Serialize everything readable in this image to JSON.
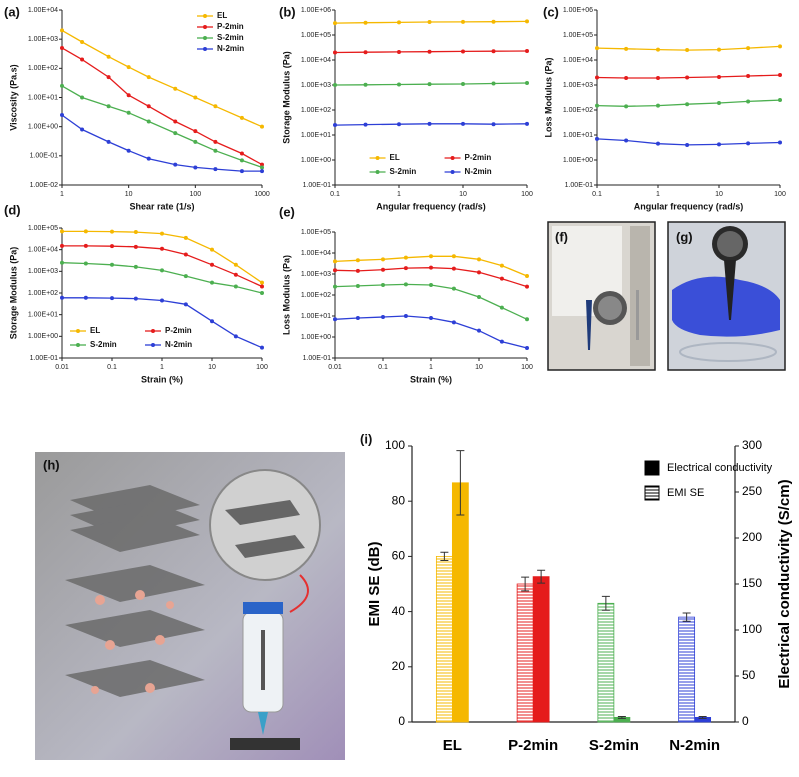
{
  "chart_data": [
    {
      "type": "line",
      "label": "(a)",
      "xlabel": "Shear rate (1/s)",
      "ylabel": "Viscosity (Pa.s)",
      "xscale": "log",
      "yscale": "log",
      "x": [
        1,
        2,
        5,
        10,
        20,
        50,
        100,
        200,
        500,
        1000
      ],
      "xlim": [
        1,
        1000
      ],
      "xticks": [
        1,
        10,
        100,
        1000
      ],
      "ylim": [
        0.01,
        10000
      ],
      "yticks": [
        {
          "value": 0.01,
          "label": "1.00E-02"
        },
        {
          "value": 0.1,
          "label": "1.00E-01"
        },
        {
          "value": 1,
          "label": "1.00E+00"
        },
        {
          "value": 10,
          "label": "1.00E+01"
        },
        {
          "value": 100,
          "label": "1.00E+02"
        },
        {
          "value": 1000,
          "label": "1.00E+03"
        },
        {
          "value": 10000,
          "label": "1.00E+04"
        }
      ],
      "legend": "upper right",
      "series": [
        {
          "name": "EL",
          "color": "#f5b800",
          "values": [
            2000,
            800,
            250,
            110,
            50,
            20,
            10,
            5,
            2,
            1
          ]
        },
        {
          "name": "P-2min",
          "color": "#e51c1c",
          "values": [
            500,
            200,
            50,
            12,
            5,
            1.5,
            0.7,
            0.3,
            0.12,
            0.05
          ]
        },
        {
          "name": "S-2min",
          "color": "#4caf50",
          "values": [
            25,
            10,
            5,
            3,
            1.5,
            0.6,
            0.3,
            0.15,
            0.07,
            0.04
          ]
        },
        {
          "name": "N-2min",
          "color": "#2d3fd6",
          "values": [
            2.5,
            0.8,
            0.3,
            0.15,
            0.08,
            0.05,
            0.04,
            0.035,
            0.03,
            0.03
          ]
        }
      ]
    },
    {
      "type": "line",
      "label": "(b)",
      "xlabel": "Angular frequency (rad/s)",
      "ylabel": "Storage Modulus (Pa)",
      "xscale": "log",
      "yscale": "log",
      "x": [
        0.1,
        0.3,
        1,
        3,
        10,
        30,
        100
      ],
      "xlim": [
        0.1,
        100
      ],
      "xticks": [
        0.1,
        1,
        10,
        100
      ],
      "ylim": [
        0.1,
        1000000
      ],
      "yticks": [
        {
          "value": 0.1,
          "label": "1.00E-01"
        },
        {
          "value": 1,
          "label": "1.00E+00"
        },
        {
          "value": 10,
          "label": "1.00E+01"
        },
        {
          "value": 100,
          "label": "1.00E+02"
        },
        {
          "value": 1000,
          "label": "1.00E+03"
        },
        {
          "value": 10000,
          "label": "1.00E+04"
        },
        {
          "value": 100000,
          "label": "1.00E+05"
        },
        {
          "value": 1000000,
          "label": "1.00E+06"
        }
      ],
      "legend": "lower center",
      "series": [
        {
          "name": "EL",
          "color": "#f5b800",
          "values": [
            300000,
            310000,
            320000,
            330000,
            335000,
            340000,
            350000
          ]
        },
        {
          "name": "P-2min",
          "color": "#e51c1c",
          "values": [
            20000,
            20500,
            21000,
            21500,
            22000,
            22500,
            23000
          ]
        },
        {
          "name": "S-2min",
          "color": "#4caf50",
          "values": [
            1000,
            1020,
            1050,
            1080,
            1100,
            1150,
            1200
          ]
        },
        {
          "name": "N-2min",
          "color": "#2d3fd6",
          "values": [
            25,
            26,
            27,
            28,
            28,
            27,
            28
          ]
        }
      ]
    },
    {
      "type": "line",
      "label": "(c)",
      "xlabel": "Angular frequency (rad/s)",
      "ylabel": "Loss Modulus (Pa)",
      "xscale": "log",
      "yscale": "log",
      "x": [
        0.1,
        0.3,
        1,
        3,
        10,
        30,
        100
      ],
      "xlim": [
        0.1,
        100
      ],
      "xticks": [
        0.1,
        1,
        10,
        100
      ],
      "ylim": [
        0.1,
        1000000
      ],
      "yticks": [
        {
          "value": 0.1,
          "label": "1.00E-01"
        },
        {
          "value": 1,
          "label": "1.00E+00"
        },
        {
          "value": 10,
          "label": "1.00E+01"
        },
        {
          "value": 100,
          "label": "1.00E+02"
        },
        {
          "value": 1000,
          "label": "1.00E+03"
        },
        {
          "value": 10000,
          "label": "1.00E+04"
        },
        {
          "value": 100000,
          "label": "1.00E+05"
        },
        {
          "value": 1000000,
          "label": "1.00E+06"
        }
      ],
      "series": [
        {
          "name": "EL",
          "color": "#f5b800",
          "values": [
            30000,
            28000,
            26000,
            25000,
            26000,
            30000,
            35000
          ]
        },
        {
          "name": "P-2min",
          "color": "#e51c1c",
          "values": [
            2000,
            1900,
            1900,
            2000,
            2100,
            2300,
            2500
          ]
        },
        {
          "name": "S-2min",
          "color": "#4caf50",
          "values": [
            150,
            140,
            150,
            170,
            190,
            220,
            250
          ]
        },
        {
          "name": "N-2min",
          "color": "#2d3fd6",
          "values": [
            7,
            6,
            4.5,
            4,
            4.2,
            4.6,
            5
          ]
        }
      ]
    },
    {
      "type": "line",
      "label": "(d)",
      "xlabel": "Strain (%)",
      "ylabel": "Storage Modulus (Pa)",
      "xscale": "log",
      "yscale": "log",
      "x": [
        0.01,
        0.03,
        0.1,
        0.3,
        1,
        3,
        10,
        30,
        100
      ],
      "xlim": [
        0.01,
        100
      ],
      "xticks": [
        0.01,
        0.1,
        1,
        10,
        100
      ],
      "ylim": [
        0.1,
        100000
      ],
      "yticks": [
        {
          "value": 0.1,
          "label": "1.00E-01"
        },
        {
          "value": 1,
          "label": "1.00E+00"
        },
        {
          "value": 10,
          "label": "1.00E+01"
        },
        {
          "value": 100,
          "label": "1.00E+02"
        },
        {
          "value": 1000,
          "label": "1.00E+03"
        },
        {
          "value": 10000,
          "label": "1.00E+04"
        },
        {
          "value": 100000,
          "label": "1.00E+05"
        }
      ],
      "legend": "lower left",
      "series": [
        {
          "name": "EL",
          "color": "#f5b800",
          "values": [
            70000,
            70000,
            68000,
            65000,
            55000,
            35000,
            10000,
            2000,
            300
          ]
        },
        {
          "name": "P-2min",
          "color": "#e51c1c",
          "values": [
            15000,
            15000,
            14500,
            13500,
            11000,
            6000,
            2000,
            700,
            200
          ]
        },
        {
          "name": "S-2min",
          "color": "#4caf50",
          "values": [
            2500,
            2300,
            2000,
            1600,
            1100,
            600,
            300,
            200,
            100
          ]
        },
        {
          "name": "N-2min",
          "color": "#2d3fd6",
          "values": [
            60,
            60,
            58,
            55,
            45,
            30,
            5,
            1,
            0.3
          ]
        }
      ]
    },
    {
      "type": "line",
      "label": "(e)",
      "xlabel": "Strain (%)",
      "ylabel": "Loss Modulus (Pa)",
      "xscale": "log",
      "yscale": "log",
      "x": [
        0.01,
        0.03,
        0.1,
        0.3,
        1,
        3,
        10,
        30,
        100
      ],
      "xlim": [
        0.01,
        100
      ],
      "xticks": [
        0.01,
        0.1,
        1,
        10,
        100
      ],
      "ylim": [
        0.1,
        100000
      ],
      "yticks": [
        {
          "value": 0.1,
          "label": "1.00E-01"
        },
        {
          "value": 1,
          "label": "1.00E+00"
        },
        {
          "value": 10,
          "label": "1.00E+01"
        },
        {
          "value": 100,
          "label": "1.00E+02"
        },
        {
          "value": 1000,
          "label": "1.00E+03"
        },
        {
          "value": 10000,
          "label": "1.00E+04"
        },
        {
          "value": 100000,
          "label": "1.00E+05"
        }
      ],
      "series": [
        {
          "name": "EL",
          "color": "#f5b800",
          "values": [
            4000,
            4500,
            5000,
            6000,
            7000,
            7000,
            5000,
            2500,
            800
          ]
        },
        {
          "name": "P-2min",
          "color": "#e51c1c",
          "values": [
            1500,
            1400,
            1600,
            1900,
            2000,
            1800,
            1200,
            600,
            250
          ]
        },
        {
          "name": "S-2min",
          "color": "#4caf50",
          "values": [
            250,
            270,
            300,
            320,
            300,
            200,
            80,
            25,
            7
          ]
        },
        {
          "name": "N-2min",
          "color": "#2d3fd6",
          "values": [
            7,
            8,
            9,
            10,
            8,
            5,
            2,
            0.6,
            0.3
          ]
        }
      ]
    },
    {
      "type": "bar",
      "label": "(i)",
      "ylabel": "EMI SE (dB)",
      "y2label": "Electrical conductivity (S/cm)",
      "categories": [
        "EL",
        "P-2min",
        "S-2min",
        "N-2min"
      ],
      "category_colors": [
        "#f5b800",
        "#e51c1c",
        "#4caf50",
        "#2d3fd6"
      ],
      "ylim": [
        0,
        100
      ],
      "yticks": [
        0,
        20,
        40,
        60,
        80,
        100
      ],
      "y2lim": [
        0,
        300
      ],
      "y2ticks": [
        0,
        50,
        100,
        150,
        200,
        250,
        300
      ],
      "legend": "upper right",
      "series": [
        {
          "name": "Electrical conductivity",
          "color": "#000000",
          "hatch": false,
          "axis": "y2",
          "values": [
            260,
            158,
            5,
            5
          ],
          "errors": [
            35,
            7,
            1,
            1
          ]
        },
        {
          "name": "EMI SE",
          "color": "#000000",
          "hatch": true,
          "values": [
            60,
            50,
            43,
            38
          ],
          "errors": [
            1.5,
            2.5,
            2.5,
            1.5
          ]
        }
      ]
    }
  ],
  "image_panels": [
    {
      "label": "(f)"
    },
    {
      "label": "(g)"
    },
    {
      "label": "(h)"
    }
  ]
}
